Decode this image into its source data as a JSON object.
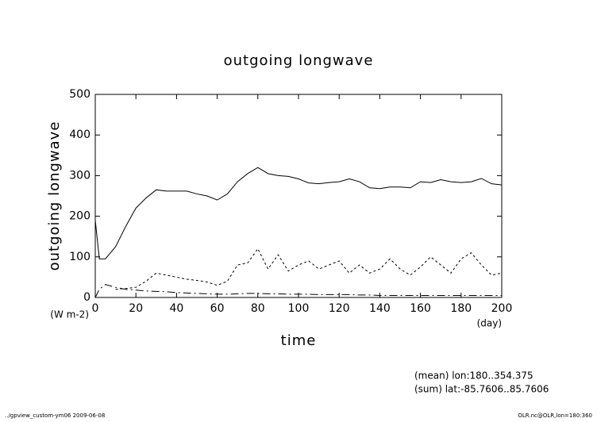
{
  "chart_data": {
    "type": "line",
    "title": "outgoing longwave",
    "x_label": "time",
    "y_label": "outgoing longwave",
    "x_unit": "(day)",
    "y_unit": "(W m-2)",
    "notes": [
      "(mean) lon:180..354.375",
      "(sum) lat:-85.7606..85.7606"
    ],
    "footer_left": "../gpview_custom-ym06  2009-06-08",
    "footer_right": "OLR.nc@OLR,lon=180:360",
    "x": [
      0,
      2,
      5,
      10,
      15,
      20,
      25,
      30,
      35,
      40,
      45,
      50,
      55,
      60,
      65,
      70,
      75,
      80,
      85,
      90,
      95,
      100,
      105,
      110,
      115,
      120,
      125,
      130,
      135,
      140,
      145,
      150,
      155,
      160,
      165,
      170,
      175,
      180,
      185,
      190,
      195,
      200
    ],
    "series": [
      {
        "color": "#000000",
        "dash": "none",
        "values": [
          190,
          95,
          95,
          125,
          175,
          220,
          245,
          265,
          262,
          262,
          262,
          255,
          250,
          240,
          255,
          285,
          305,
          320,
          305,
          300,
          298,
          292,
          282,
          280,
          283,
          285,
          292,
          285,
          270,
          268,
          272,
          272,
          270,
          285,
          283,
          290,
          285,
          283,
          285,
          293,
          280,
          277
        ]
      },
      {
        "color": "#000000",
        "dash": "3,3",
        "values": [
          null,
          null,
          null,
          20,
          22,
          25,
          40,
          60,
          55,
          50,
          45,
          42,
          38,
          30,
          40,
          80,
          85,
          120,
          70,
          105,
          65,
          80,
          90,
          70,
          80,
          90,
          60,
          80,
          60,
          70,
          95,
          70,
          55,
          75,
          100,
          80,
          60,
          95,
          110,
          80,
          55,
          60
        ]
      },
      {
        "color": "#000000",
        "dash": "10,4,2,4",
        "values": [
          0,
          20,
          32,
          25,
          20,
          18,
          16,
          15,
          14,
          12,
          11,
          10,
          9,
          8,
          8,
          9,
          10,
          10,
          9,
          9,
          8,
          8,
          8,
          7,
          7,
          7,
          7,
          6,
          6,
          5,
          5,
          5,
          5,
          5,
          5,
          5,
          5,
          5,
          5,
          5,
          5,
          5
        ]
      }
    ],
    "xlim": [
      0,
      200
    ],
    "ylim": [
      0,
      500
    ],
    "xticks": [
      0,
      20,
      40,
      60,
      80,
      100,
      120,
      140,
      160,
      180,
      200
    ],
    "yticks": [
      0,
      100,
      200,
      300,
      400,
      500
    ]
  }
}
